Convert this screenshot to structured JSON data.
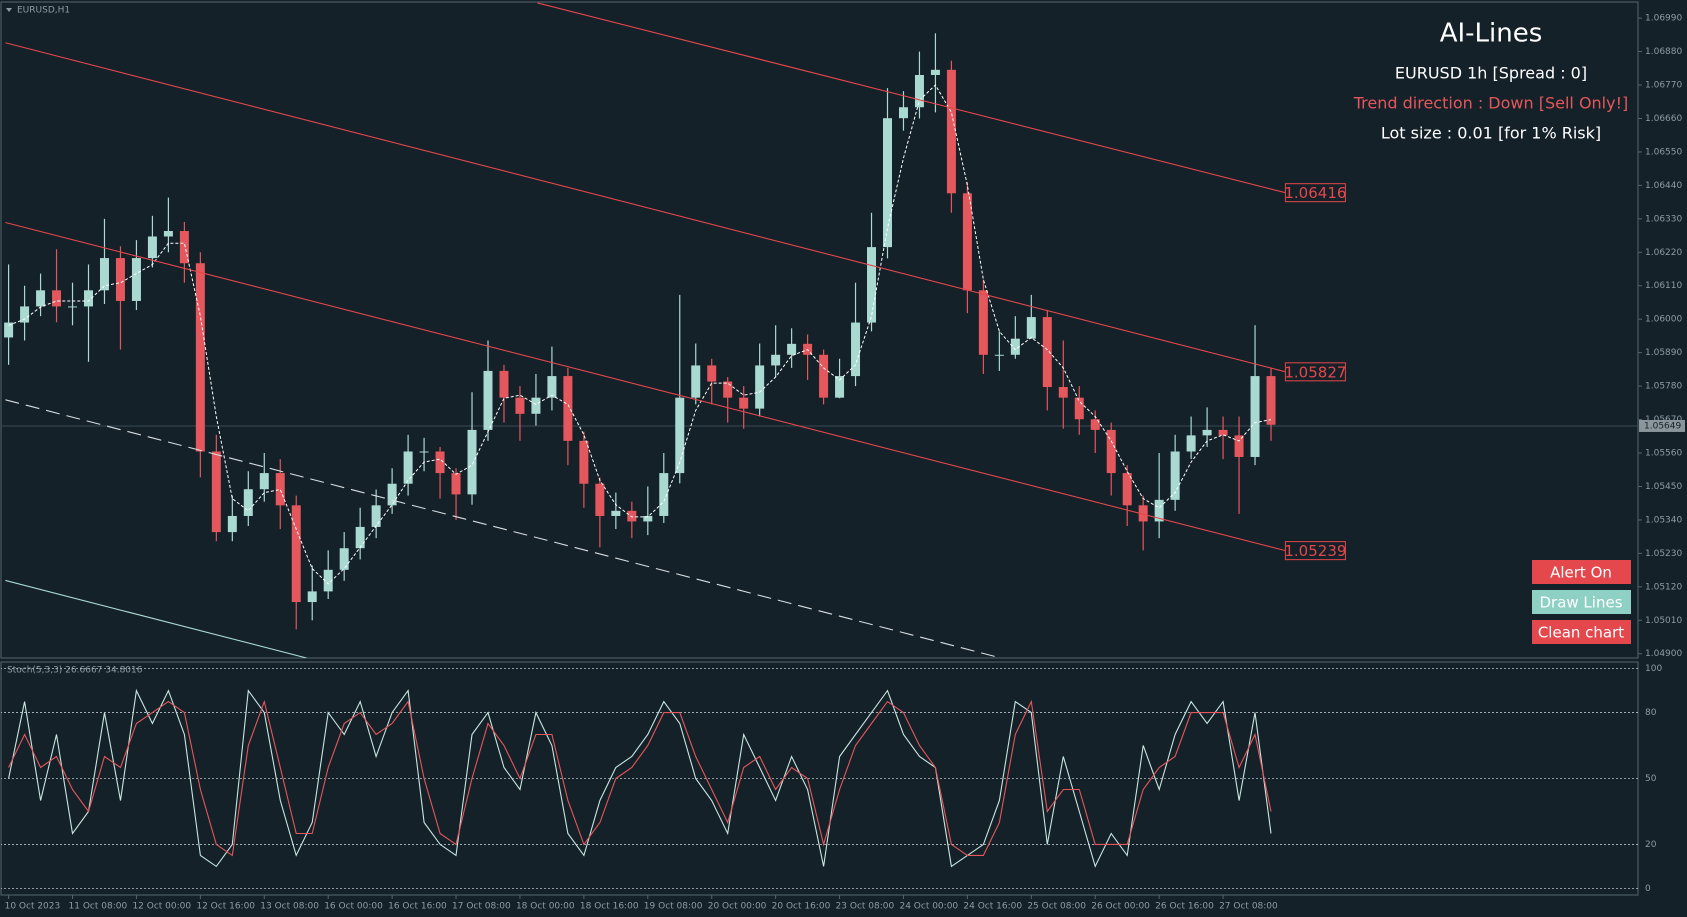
{
  "chart_data": [
    {
      "type": "candlestick",
      "title": "EURUSD,H1",
      "categories": [
        "10 Oct 2023",
        null,
        null,
        null,
        "11 Oct 08:00",
        null,
        null,
        null,
        "12 Oct 00:00",
        null,
        null,
        null,
        "12 Oct 16:00",
        null,
        null,
        null,
        "13 Oct 08:00",
        null,
        null,
        null,
        "16 Oct 00:00",
        null,
        null,
        null,
        "16 Oct 16:00",
        null,
        null,
        null,
        "17 Oct 08:00",
        null,
        null,
        null,
        "18 Oct 00:00",
        null,
        null,
        null,
        "18 Oct 16:00",
        null,
        null,
        null,
        "19 Oct 08:00",
        null,
        null,
        null,
        "20 Oct 00:00",
        null,
        null,
        null,
        "20 Oct 16:00",
        null,
        null,
        null,
        "23 Oct 08:00",
        null,
        null,
        null,
        "24 Oct 00:00",
        null,
        null,
        null,
        "24 Oct 16:00",
        null,
        null,
        null,
        "25 Oct 08:00",
        null,
        null,
        null,
        "26 Oct 00:00",
        null,
        null,
        null,
        "26 Oct 16:00",
        null,
        null,
        null,
        "27 Oct 08:00",
        null,
        null,
        null
      ],
      "open": [
        1.0594,
        1.05989,
        1.06042,
        1.06095,
        1.06042,
        1.06042,
        1.06095,
        1.06201,
        1.0606,
        1.06201,
        1.06272,
        1.0629,
        1.06184,
        1.05565,
        1.053,
        1.05353,
        1.05441,
        1.05494,
        1.05388,
        1.0507,
        1.05105,
        1.05176,
        1.05247,
        1.05317,
        1.05388,
        1.05459,
        1.05565,
        1.05565,
        1.05494,
        1.05424,
        1.05636,
        1.0583,
        1.05742,
        1.05689,
        1.05742,
        1.05813,
        1.056,
        1.05459,
        1.05353,
        1.0537,
        1.05335,
        1.05353,
        1.05494,
        1.05742,
        1.05848,
        1.05795,
        1.05742,
        1.05706,
        1.05848,
        1.05883,
        1.05919,
        1.05883,
        1.05742,
        1.05813,
        1.05989,
        1.06237,
        1.06661,
        1.06697,
        1.06803,
        1.0682,
        1.06414,
        1.06095,
        1.05883,
        1.05883,
        1.05936,
        1.06007,
        1.05777,
        1.05742,
        1.05671,
        1.05636,
        1.05494,
        1.05388,
        1.05335,
        1.05406,
        1.05565,
        1.05618,
        1.05636,
        1.05618,
        1.05547,
        1.05813
      ],
      "high": [
        1.0618,
        1.0611,
        1.0615,
        1.0623,
        1.0612,
        1.0618,
        1.0633,
        1.0624,
        1.0626,
        1.0634,
        1.064,
        1.0632,
        1.0622,
        1.0562,
        1.0542,
        1.055,
        1.0556,
        1.0554,
        1.0542,
        1.0519,
        1.0524,
        1.053,
        1.0538,
        1.0544,
        1.0551,
        1.0562,
        1.0561,
        1.0558,
        1.0551,
        1.0576,
        1.0593,
        1.0585,
        1.0578,
        1.0582,
        1.0591,
        1.0584,
        1.0563,
        1.0548,
        1.0543,
        1.054,
        1.0545,
        1.0556,
        1.0608,
        1.0592,
        1.0587,
        1.0581,
        1.0578,
        1.0592,
        1.0598,
        1.0597,
        1.0595,
        1.059,
        1.0587,
        1.0612,
        1.0635,
        1.0676,
        1.0675,
        1.0688,
        1.0694,
        1.0685,
        1.0645,
        1.0613,
        1.0596,
        1.0601,
        1.0608,
        1.0603,
        1.0593,
        1.0578,
        1.057,
        1.0566,
        1.0552,
        1.0542,
        1.0556,
        1.0562,
        1.0568,
        1.0571,
        1.0568,
        1.0568,
        1.0598,
        1.0584
      ],
      "low": [
        1.0585,
        1.0593,
        1.0601,
        1.0599,
        1.0598,
        1.0586,
        1.0605,
        1.059,
        1.0603,
        1.0617,
        1.0622,
        1.0612,
        1.0548,
        1.0527,
        1.0527,
        1.0532,
        1.054,
        1.0531,
        1.0498,
        1.0501,
        1.0508,
        1.0514,
        1.0521,
        1.0528,
        1.0536,
        1.0542,
        1.055,
        1.0541,
        1.0534,
        1.0539,
        1.056,
        1.0566,
        1.056,
        1.0565,
        1.057,
        1.0552,
        1.0538,
        1.0525,
        1.0531,
        1.0528,
        1.0529,
        1.0533,
        1.0546,
        1.0572,
        1.0572,
        1.0566,
        1.0564,
        1.0568,
        1.0581,
        1.0584,
        1.058,
        1.0572,
        1.0574,
        1.0578,
        1.0596,
        1.062,
        1.0662,
        1.0666,
        1.0668,
        1.0635,
        1.0602,
        1.0582,
        1.0583,
        1.0587,
        1.0595,
        1.057,
        1.0564,
        1.0562,
        1.0556,
        1.0542,
        1.0532,
        1.0524,
        1.0528,
        1.0537,
        1.0554,
        1.0558,
        1.0554,
        1.0536,
        1.0552,
        1.056
      ],
      "close": [
        1.05989,
        1.06042,
        1.06095,
        1.06042,
        1.06042,
        1.06095,
        1.06201,
        1.0606,
        1.06201,
        1.06272,
        1.0629,
        1.06184,
        1.05565,
        1.053,
        1.05353,
        1.05441,
        1.05494,
        1.05388,
        1.0507,
        1.05105,
        1.05176,
        1.05247,
        1.05317,
        1.05388,
        1.05459,
        1.05565,
        1.05565,
        1.05494,
        1.05424,
        1.05636,
        1.0583,
        1.05742,
        1.05689,
        1.05742,
        1.05813,
        1.056,
        1.05459,
        1.05353,
        1.0537,
        1.05335,
        1.05353,
        1.05494,
        1.05742,
        1.05848,
        1.05795,
        1.05742,
        1.05706,
        1.05848,
        1.05883,
        1.05919,
        1.05883,
        1.05742,
        1.05813,
        1.05989,
        1.06237,
        1.06661,
        1.06697,
        1.06803,
        1.0682,
        1.06414,
        1.06095,
        1.05883,
        1.05883,
        1.05936,
        1.06007,
        1.05777,
        1.05742,
        1.05671,
        1.05636,
        1.05494,
        1.05388,
        1.05335,
        1.05406,
        1.05565,
        1.05618,
        1.05636,
        1.05618,
        1.05547,
        1.05813,
        1.05653
      ],
      "up_color": "#a9d9d1",
      "down_color": "#e4575c",
      "ma": {
        "color": "#ffffff",
        "values": [
          1.0598,
          1.06,
          1.0604,
          1.0606,
          1.0606,
          1.0606,
          1.0611,
          1.0612,
          1.0615,
          1.0618,
          1.0625,
          1.0625,
          1.0601,
          1.0568,
          1.0541,
          1.0537,
          1.0543,
          1.0544,
          1.0531,
          1.0518,
          1.0513,
          1.0518,
          1.0525,
          1.0532,
          1.0539,
          1.0547,
          1.0553,
          1.0554,
          1.0549,
          1.0552,
          1.0563,
          1.0574,
          1.0575,
          1.0572,
          1.0575,
          1.0572,
          1.0562,
          1.0547,
          1.0539,
          1.0535,
          1.0535,
          1.054,
          1.0553,
          1.057,
          1.0579,
          1.0579,
          1.0575,
          1.0576,
          1.0581,
          1.0588,
          1.059,
          1.0584,
          1.058,
          1.0585,
          1.0601,
          1.063,
          1.0653,
          1.0672,
          1.0677,
          1.0668,
          1.0644,
          1.0613,
          1.0596,
          1.059,
          1.0594,
          1.059,
          1.0584,
          1.0573,
          1.0568,
          1.056,
          1.055,
          1.0541,
          1.0538,
          1.0543,
          1.0553,
          1.056,
          1.0562,
          1.056,
          1.0566,
          1.0567
        ]
      },
      "lines": [
        {
          "from": [
            33.1,
            1.0704
          ],
          "to": [
            79.9,
            1.06416
          ],
          "color": "#e4474c",
          "label": true
        },
        {
          "from": [
            -0.2,
            1.06909
          ],
          "to": [
            79.9,
            1.05827
          ],
          "color": "#e4474c",
          "label": true
        },
        {
          "from": [
            -0.2,
            1.06318
          ],
          "to": [
            79.9,
            1.05239
          ],
          "color": "#e4474c",
          "label": true
        },
        {
          "from": [
            -0.2,
            1.05735
          ],
          "to": [
            62.1,
            1.04886
          ],
          "color": "#d8dde0",
          "dash": true
        },
        {
          "from": [
            -0.2,
            1.05141
          ],
          "to": [
            18.65,
            1.04886
          ],
          "color": "#a9d9d1"
        }
      ],
      "current_price": 1.05649,
      "ylim": [
        1.04886,
        1.07043
      ],
      "yticks": [
        {
          "value": 1.0699,
          "label": "1.06990"
        },
        {
          "value": 1.0688,
          "label": "1.06880"
        },
        {
          "value": 1.0677,
          "label": "1.06770"
        },
        {
          "value": 1.0666,
          "label": "1.06660"
        },
        {
          "value": 1.0655,
          "label": "1.06550"
        },
        {
          "value": 1.0644,
          "label": "1.06440"
        },
        {
          "value": 1.0633,
          "label": "1.06330"
        },
        {
          "value": 1.0622,
          "label": "1.06220"
        },
        {
          "value": 1.0611,
          "label": "1.06110"
        },
        {
          "value": 1.06,
          "label": "1.06000"
        },
        {
          "value": 1.0589,
          "label": "1.05890"
        },
        {
          "value": 1.0578,
          "label": "1.05780"
        },
        {
          "value": 1.0567,
          "label": "1.05670"
        },
        {
          "value": 1.0556,
          "label": "1.05560"
        },
        {
          "value": 1.0545,
          "label": "1.05450"
        },
        {
          "value": 1.0534,
          "label": "1.05340"
        },
        {
          "value": 1.0523,
          "label": "1.05230"
        },
        {
          "value": 1.0512,
          "label": "1.05120"
        },
        {
          "value": 1.0501,
          "label": "1.05010"
        },
        {
          "value": 1.049,
          "label": "1.04900"
        }
      ]
    },
    {
      "type": "line",
      "title": "Stoch(5,3,3) 26.6667 34.8016",
      "series": [
        {
          "color": "#c9e6e1",
          "values": [
            50,
            85,
            40,
            70,
            25,
            35,
            80,
            40,
            90,
            75,
            90,
            70,
            15,
            10,
            20,
            90,
            80,
            40,
            15,
            30,
            80,
            70,
            85,
            60,
            80,
            90,
            30,
            20,
            15,
            70,
            80,
            55,
            45,
            80,
            65,
            25,
            15,
            40,
            55,
            60,
            70,
            85,
            75,
            50,
            40,
            25,
            70,
            55,
            40,
            60,
            45,
            10,
            60,
            70,
            80,
            90,
            70,
            60,
            55,
            10,
            15,
            20,
            40,
            85,
            80,
            20,
            60,
            35,
            10,
            25,
            15,
            65,
            45,
            70,
            85,
            75,
            85,
            40,
            80,
            25
          ]
        },
        {
          "color": "#e4575c",
          "values": [
            55,
            70,
            55,
            60,
            45,
            35,
            60,
            55,
            75,
            80,
            85,
            80,
            45,
            20,
            15,
            65,
            85,
            55,
            25,
            25,
            55,
            75,
            80,
            70,
            75,
            85,
            50,
            25,
            20,
            50,
            75,
            65,
            50,
            70,
            70,
            40,
            20,
            30,
            50,
            55,
            65,
            80,
            80,
            60,
            45,
            30,
            55,
            60,
            45,
            55,
            50,
            20,
            45,
            65,
            75,
            85,
            80,
            65,
            55,
            20,
            15,
            15,
            30,
            70,
            85,
            35,
            45,
            45,
            20,
            20,
            20,
            45,
            55,
            60,
            80,
            80,
            80,
            55,
            70,
            35
          ]
        }
      ],
      "ylim": [
        -3,
        103
      ],
      "yticks": [
        100,
        80,
        50,
        20,
        0
      ],
      "grid": true
    }
  ],
  "overlay": {
    "title": "AI-Lines",
    "info": [
      {
        "text": "EURUSD 1h [Spread : 0]",
        "color": "#ffffff"
      },
      {
        "text": "Trend direction : Down [Sell Only!]",
        "color": "#e4575c"
      },
      {
        "text": "Lot size : 0.01 [for 1% Risk]",
        "color": "#ffffff"
      }
    ]
  },
  "buttons": [
    {
      "label": "Alert On",
      "color": "#e4474c"
    },
    {
      "label": "Draw Lines",
      "color": "#8fd0c4"
    },
    {
      "label": "Clean chart",
      "color": "#e4474c"
    }
  ]
}
